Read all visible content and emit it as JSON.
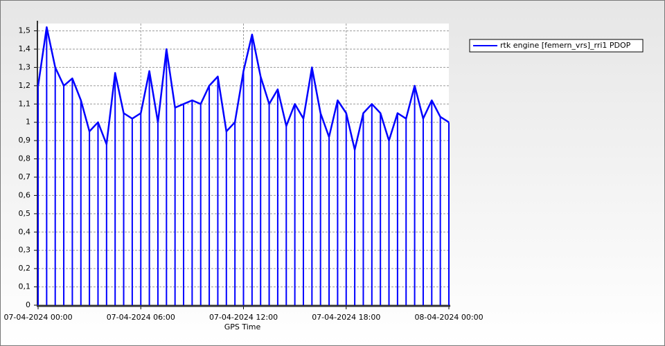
{
  "chart_data": {
    "type": "line",
    "x_label": "GPS Time",
    "x": [
      "07-04-2024 00:00",
      "07-04-2024 00:30",
      "07-04-2024 01:00",
      "07-04-2024 01:30",
      "07-04-2024 02:00",
      "07-04-2024 02:30",
      "07-04-2024 03:00",
      "07-04-2024 03:30",
      "07-04-2024 04:00",
      "07-04-2024 04:30",
      "07-04-2024 05:00",
      "07-04-2024 05:30",
      "07-04-2024 06:00",
      "07-04-2024 06:30",
      "07-04-2024 07:00",
      "07-04-2024 07:30",
      "07-04-2024 08:00",
      "07-04-2024 08:30",
      "07-04-2024 09:00",
      "07-04-2024 09:30",
      "07-04-2024 10:00",
      "07-04-2024 10:30",
      "07-04-2024 11:00",
      "07-04-2024 11:30",
      "07-04-2024 12:00",
      "07-04-2024 12:30",
      "07-04-2024 13:00",
      "07-04-2024 13:30",
      "07-04-2024 14:00",
      "07-04-2024 14:30",
      "07-04-2024 15:00",
      "07-04-2024 15:30",
      "07-04-2024 16:00",
      "07-04-2024 16:30",
      "07-04-2024 17:00",
      "07-04-2024 17:30",
      "07-04-2024 18:00",
      "07-04-2024 18:30",
      "07-04-2024 19:00",
      "07-04-2024 19:30",
      "07-04-2024 20:00",
      "07-04-2024 20:30",
      "07-04-2024 21:00",
      "07-04-2024 21:30",
      "07-04-2024 22:00",
      "07-04-2024 22:30",
      "07-04-2024 23:00",
      "07-04-2024 23:30",
      "08-04-2024 00:00"
    ],
    "series": [
      {
        "name": "rtk engine [femern_vrs]_rri1 PDOP",
        "color": "#0000ff",
        "values": [
          1.2,
          1.52,
          1.3,
          1.2,
          1.24,
          1.12,
          0.95,
          1.0,
          0.88,
          1.27,
          1.05,
          1.02,
          1.05,
          1.28,
          1.0,
          1.4,
          1.08,
          1.1,
          1.12,
          1.1,
          1.2,
          1.25,
          0.95,
          1.0,
          1.28,
          1.48,
          1.25,
          1.1,
          1.18,
          0.98,
          1.1,
          1.02,
          1.3,
          1.05,
          0.92,
          1.12,
          1.05,
          0.85,
          1.05,
          1.1,
          1.05,
          0.9,
          1.05,
          1.02,
          1.2,
          1.02,
          1.12,
          1.03,
          1.0
        ]
      }
    ],
    "xlim": [
      "07-04-2024 00:00",
      "08-04-2024 00:00"
    ],
    "xticks": [
      "07-04-2024 00:00",
      "07-04-2024 06:00",
      "07-04-2024 12:00",
      "07-04-2024 18:00",
      "08-04-2024 00:00"
    ],
    "ylim": [
      0,
      1.54
    ],
    "yticks": [
      0,
      {
        "value": 0.1,
        "label": "0,1"
      },
      {
        "value": 0.2,
        "label": "0,2"
      },
      {
        "value": 0.3,
        "label": "0,3"
      },
      {
        "value": 0.4,
        "label": "0,4"
      },
      {
        "value": 0.5,
        "label": "0,5"
      },
      {
        "value": 0.6,
        "label": "0,6"
      },
      {
        "value": 0.7,
        "label": "0,7"
      },
      {
        "value": 0.8,
        "label": "0,8"
      },
      {
        "value": 0.9,
        "label": "0,9"
      },
      1,
      {
        "value": 1.1,
        "label": "1,1"
      },
      {
        "value": 1.2,
        "label": "1,2"
      },
      {
        "value": 1.3,
        "label": "1,3"
      },
      {
        "value": 1.4,
        "label": "1,4"
      },
      {
        "value": 1.5,
        "label": "1,5"
      }
    ],
    "grid": true,
    "legend": "top-right"
  }
}
